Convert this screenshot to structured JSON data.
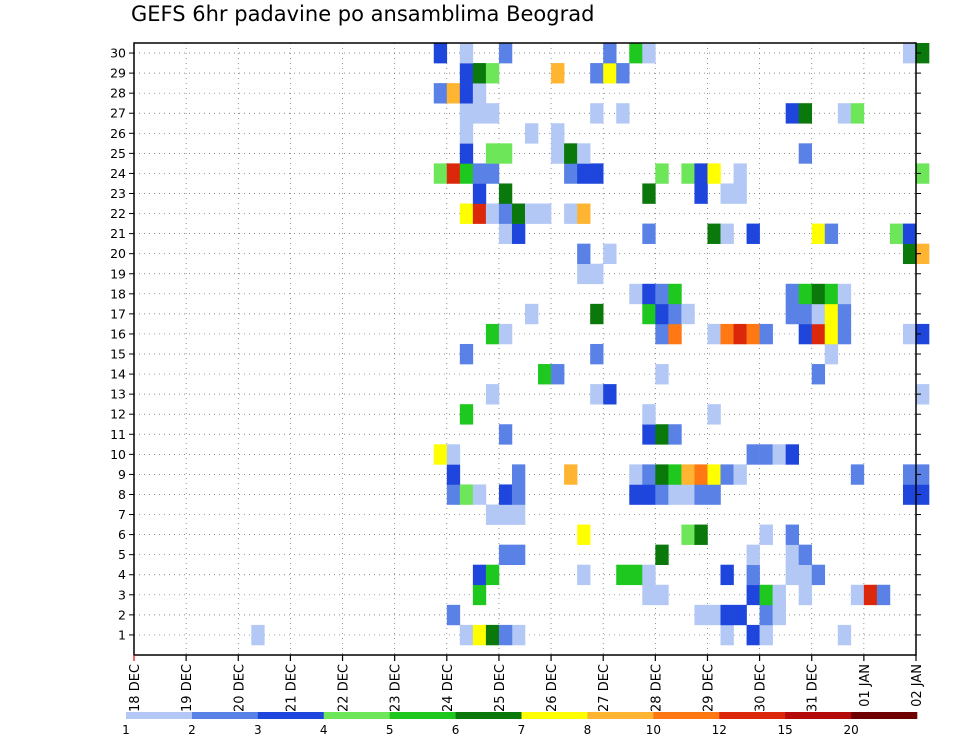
{
  "title": "GEFS 6hr padavine po ansamblima Beograd",
  "chart_data": {
    "type": "heatmap",
    "title": "GEFS 6hr padavine po ansamblima Beograd",
    "x_ticks": [
      "18 DEC",
      "19 DEC",
      "20 DEC",
      "21 DEC",
      "22 DEC",
      "23 DEC",
      "24 DEC",
      "25 DEC",
      "26 DEC",
      "27 DEC",
      "28 DEC",
      "29 DEC",
      "30 DEC",
      "31 DEC",
      "01 JAN",
      "02 JAN"
    ],
    "y_ticks": [
      "1",
      "2",
      "3",
      "4",
      "5",
      "6",
      "7",
      "8",
      "9",
      "10",
      "11",
      "12",
      "13",
      "14",
      "15",
      "16",
      "17",
      "18",
      "19",
      "20",
      "21",
      "22",
      "23",
      "24",
      "25",
      "26",
      "27",
      "28",
      "29",
      "30"
    ],
    "steps_per_day": 4,
    "grid": true,
    "legend": {
      "position": "bottom",
      "labels": [
        "1",
        "2",
        "3",
        "4",
        "5",
        "6",
        "7",
        "8",
        "10",
        "12",
        "15",
        "20"
      ],
      "colors": [
        "#b4c8f5",
        "#5a82e6",
        "#1e46dc",
        "#6ee65a",
        "#1ec81e",
        "#0a780a",
        "#ffff00",
        "#ffb432",
        "#ff7814",
        "#dc280a",
        "#b40a0a",
        "#6e0000"
      ]
    },
    "cells": [
      {
        "x": 25.25,
        "y": 1,
        "v": 1
      },
      {
        "x": 24.25,
        "y": 1,
        "v": 1
      },
      {
        "x": 24.5,
        "y": 1,
        "v": 7
      },
      {
        "x": 24.75,
        "y": 1,
        "v": 6
      },
      {
        "x": 25.0,
        "y": 1,
        "v": 2
      },
      {
        "x": 29.25,
        "y": 1,
        "v": 1
      },
      {
        "x": 29.75,
        "y": 1,
        "v": 3
      },
      {
        "x": 30.0,
        "y": 1,
        "v": 1
      },
      {
        "x": 31.5,
        "y": 1,
        "v": 1
      },
      {
        "x": 20.25,
        "y": 1,
        "v": 1
      },
      {
        "x": 24.0,
        "y": 2,
        "v": 2
      },
      {
        "x": 28.75,
        "y": 2,
        "v": 1
      },
      {
        "x": 29.0,
        "y": 2,
        "v": 1
      },
      {
        "x": 29.25,
        "y": 2,
        "v": 3
      },
      {
        "x": 29.5,
        "y": 2,
        "v": 3
      },
      {
        "x": 30.0,
        "y": 2,
        "v": 2
      },
      {
        "x": 30.25,
        "y": 2,
        "v": 1
      },
      {
        "x": 24.5,
        "y": 3,
        "v": 5
      },
      {
        "x": 27.75,
        "y": 3,
        "v": 1
      },
      {
        "x": 28.0,
        "y": 3,
        "v": 1
      },
      {
        "x": 29.75,
        "y": 3,
        "v": 3
      },
      {
        "x": 30.0,
        "y": 3,
        "v": 5
      },
      {
        "x": 30.25,
        "y": 3,
        "v": 1
      },
      {
        "x": 30.75,
        "y": 3,
        "v": 1
      },
      {
        "x": 31.75,
        "y": 3,
        "v": 1
      },
      {
        "x": 32.0,
        "y": 3,
        "v": 12
      },
      {
        "x": 32.25,
        "y": 3,
        "v": 2
      },
      {
        "x": 24.5,
        "y": 4,
        "v": 3
      },
      {
        "x": 24.75,
        "y": 4,
        "v": 5
      },
      {
        "x": 26.5,
        "y": 4,
        "v": 1
      },
      {
        "x": 27.25,
        "y": 4,
        "v": 5
      },
      {
        "x": 27.5,
        "y": 4,
        "v": 5
      },
      {
        "x": 27.75,
        "y": 4,
        "v": 1
      },
      {
        "x": 29.25,
        "y": 4,
        "v": 3
      },
      {
        "x": 29.75,
        "y": 4,
        "v": 2
      },
      {
        "x": 30.5,
        "y": 4,
        "v": 1
      },
      {
        "x": 30.75,
        "y": 4,
        "v": 1
      },
      {
        "x": 31.0,
        "y": 4,
        "v": 2
      },
      {
        "x": 25.0,
        "y": 5,
        "v": 2
      },
      {
        "x": 25.25,
        "y": 5,
        "v": 2
      },
      {
        "x": 28.0,
        "y": 5,
        "v": 6
      },
      {
        "x": 29.75,
        "y": 5,
        "v": 1
      },
      {
        "x": 30.5,
        "y": 5,
        "v": 1
      },
      {
        "x": 30.75,
        "y": 5,
        "v": 2
      },
      {
        "x": 26.5,
        "y": 6,
        "v": 7
      },
      {
        "x": 28.5,
        "y": 6,
        "v": 4
      },
      {
        "x": 28.75,
        "y": 6,
        "v": 6
      },
      {
        "x": 30.0,
        "y": 6,
        "v": 1
      },
      {
        "x": 30.5,
        "y": 6,
        "v": 2
      },
      {
        "x": 24.75,
        "y": 7,
        "v": 1
      },
      {
        "x": 25.0,
        "y": 7,
        "v": 1
      },
      {
        "x": 25.25,
        "y": 7,
        "v": 1
      },
      {
        "x": 24.0,
        "y": 8,
        "v": 2
      },
      {
        "x": 24.25,
        "y": 8,
        "v": 4
      },
      {
        "x": 24.5,
        "y": 8,
        "v": 1
      },
      {
        "x": 25.0,
        "y": 8,
        "v": 3
      },
      {
        "x": 25.25,
        "y": 8,
        "v": 2
      },
      {
        "x": 27.5,
        "y": 8,
        "v": 3
      },
      {
        "x": 27.75,
        "y": 8,
        "v": 3
      },
      {
        "x": 28.0,
        "y": 8,
        "v": 2
      },
      {
        "x": 28.25,
        "y": 8,
        "v": 1
      },
      {
        "x": 28.5,
        "y": 8,
        "v": 1
      },
      {
        "x": 28.75,
        "y": 8,
        "v": 2
      },
      {
        "x": 29.0,
        "y": 8,
        "v": 2
      },
      {
        "x": 32.75,
        "y": 8,
        "v": 3
      },
      {
        "x": 33.0,
        "y": 8,
        "v": 3
      },
      {
        "x": 24.0,
        "y": 9,
        "v": 3
      },
      {
        "x": 25.25,
        "y": 9,
        "v": 2
      },
      {
        "x": 26.25,
        "y": 9,
        "v": 8
      },
      {
        "x": 27.5,
        "y": 9,
        "v": 1
      },
      {
        "x": 27.75,
        "y": 9,
        "v": 2
      },
      {
        "x": 28.0,
        "y": 9,
        "v": 6
      },
      {
        "x": 28.25,
        "y": 9,
        "v": 5
      },
      {
        "x": 28.5,
        "y": 9,
        "v": 8
      },
      {
        "x": 28.75,
        "y": 9,
        "v": 10
      },
      {
        "x": 29.0,
        "y": 9,
        "v": 7
      },
      {
        "x": 29.25,
        "y": 9,
        "v": 2
      },
      {
        "x": 29.5,
        "y": 9,
        "v": 1
      },
      {
        "x": 31.75,
        "y": 9,
        "v": 2
      },
      {
        "x": 32.75,
        "y": 9,
        "v": 2
      },
      {
        "x": 33.0,
        "y": 9,
        "v": 2
      },
      {
        "x": 23.75,
        "y": 10,
        "v": 7
      },
      {
        "x": 24.0,
        "y": 10,
        "v": 1
      },
      {
        "x": 29.75,
        "y": 10,
        "v": 2
      },
      {
        "x": 30.0,
        "y": 10,
        "v": 2
      },
      {
        "x": 30.25,
        "y": 10,
        "v": 1
      },
      {
        "x": 30.5,
        "y": 10,
        "v": 3
      },
      {
        "x": 27.75,
        "y": 11,
        "v": 3
      },
      {
        "x": 28.0,
        "y": 11,
        "v": 6
      },
      {
        "x": 28.25,
        "y": 11,
        "v": 2
      },
      {
        "x": 25.0,
        "y": 11,
        "v": 2
      },
      {
        "x": 24.25,
        "y": 12,
        "v": 5
      },
      {
        "x": 27.75,
        "y": 12,
        "v": 1
      },
      {
        "x": 29.0,
        "y": 12,
        "v": 1
      },
      {
        "x": 24.75,
        "y": 13,
        "v": 1
      },
      {
        "x": 26.75,
        "y": 13,
        "v": 1
      },
      {
        "x": 27.0,
        "y": 13,
        "v": 3
      },
      {
        "x": 33.0,
        "y": 13,
        "v": 1
      },
      {
        "x": 25.75,
        "y": 14,
        "v": 5
      },
      {
        "x": 26.0,
        "y": 14,
        "v": 2
      },
      {
        "x": 28.0,
        "y": 14,
        "v": 1
      },
      {
        "x": 31.0,
        "y": 14,
        "v": 2
      },
      {
        "x": 24.25,
        "y": 15,
        "v": 2
      },
      {
        "x": 26.75,
        "y": 15,
        "v": 2
      },
      {
        "x": 31.25,
        "y": 15,
        "v": 1
      },
      {
        "x": 24.75,
        "y": 16,
        "v": 5
      },
      {
        "x": 25.0,
        "y": 16,
        "v": 1
      },
      {
        "x": 28.0,
        "y": 16,
        "v": 2
      },
      {
        "x": 28.25,
        "y": 16,
        "v": 10
      },
      {
        "x": 29.0,
        "y": 16,
        "v": 1
      },
      {
        "x": 29.25,
        "y": 16,
        "v": 10
      },
      {
        "x": 29.5,
        "y": 16,
        "v": 12
      },
      {
        "x": 29.75,
        "y": 16,
        "v": 10
      },
      {
        "x": 30.0,
        "y": 16,
        "v": 2
      },
      {
        "x": 30.75,
        "y": 16,
        "v": 3
      },
      {
        "x": 31.0,
        "y": 16,
        "v": 12
      },
      {
        "x": 31.25,
        "y": 16,
        "v": 7
      },
      {
        "x": 31.5,
        "y": 16,
        "v": 2
      },
      {
        "x": 32.75,
        "y": 16,
        "v": 1
      },
      {
        "x": 33.0,
        "y": 16,
        "v": 3
      },
      {
        "x": 25.5,
        "y": 17,
        "v": 1
      },
      {
        "x": 26.75,
        "y": 17,
        "v": 6
      },
      {
        "x": 27.75,
        "y": 17,
        "v": 5
      },
      {
        "x": 28.0,
        "y": 17,
        "v": 3
      },
      {
        "x": 28.25,
        "y": 17,
        "v": 2
      },
      {
        "x": 28.5,
        "y": 17,
        "v": 1
      },
      {
        "x": 30.5,
        "y": 17,
        "v": 2
      },
      {
        "x": 30.75,
        "y": 17,
        "v": 2
      },
      {
        "x": 31.0,
        "y": 17,
        "v": 1
      },
      {
        "x": 31.25,
        "y": 17,
        "v": 7
      },
      {
        "x": 31.5,
        "y": 17,
        "v": 2
      },
      {
        "x": 27.5,
        "y": 18,
        "v": 1
      },
      {
        "x": 27.75,
        "y": 18,
        "v": 3
      },
      {
        "x": 28.0,
        "y": 18,
        "v": 2
      },
      {
        "x": 28.25,
        "y": 18,
        "v": 5
      },
      {
        "x": 30.5,
        "y": 18,
        "v": 2
      },
      {
        "x": 30.75,
        "y": 18,
        "v": 5
      },
      {
        "x": 31.0,
        "y": 18,
        "v": 6
      },
      {
        "x": 31.25,
        "y": 18,
        "v": 5
      },
      {
        "x": 31.5,
        "y": 18,
        "v": 1
      },
      {
        "x": 26.5,
        "y": 19,
        "v": 1
      },
      {
        "x": 26.75,
        "y": 19,
        "v": 1
      },
      {
        "x": 26.5,
        "y": 20,
        "v": 2
      },
      {
        "x": 27.0,
        "y": 20,
        "v": 1
      },
      {
        "x": 32.75,
        "y": 20,
        "v": 6
      },
      {
        "x": 33.0,
        "y": 20,
        "v": 8
      },
      {
        "x": 25.0,
        "y": 21,
        "v": 1
      },
      {
        "x": 25.25,
        "y": 21,
        "v": 3
      },
      {
        "x": 27.75,
        "y": 21,
        "v": 2
      },
      {
        "x": 29.0,
        "y": 21,
        "v": 6
      },
      {
        "x": 29.25,
        "y": 21,
        "v": 1
      },
      {
        "x": 29.75,
        "y": 21,
        "v": 3
      },
      {
        "x": 31.0,
        "y": 21,
        "v": 7
      },
      {
        "x": 31.25,
        "y": 21,
        "v": 2
      },
      {
        "x": 32.5,
        "y": 21,
        "v": 4
      },
      {
        "x": 32.75,
        "y": 21,
        "v": 3
      },
      {
        "x": 24.25,
        "y": 22,
        "v": 7
      },
      {
        "x": 24.5,
        "y": 22,
        "v": 12
      },
      {
        "x": 24.75,
        "y": 22,
        "v": 1
      },
      {
        "x": 25.0,
        "y": 22,
        "v": 2
      },
      {
        "x": 25.25,
        "y": 22,
        "v": 6
      },
      {
        "x": 25.5,
        "y": 22,
        "v": 1
      },
      {
        "x": 25.75,
        "y": 22,
        "v": 1
      },
      {
        "x": 26.25,
        "y": 22,
        "v": 1
      },
      {
        "x": 26.5,
        "y": 22,
        "v": 8
      },
      {
        "x": 24.5,
        "y": 23,
        "v": 3
      },
      {
        "x": 25.0,
        "y": 23,
        "v": 6
      },
      {
        "x": 27.75,
        "y": 23,
        "v": 6
      },
      {
        "x": 28.75,
        "y": 23,
        "v": 3
      },
      {
        "x": 29.25,
        "y": 23,
        "v": 1
      },
      {
        "x": 29.5,
        "y": 23,
        "v": 1
      },
      {
        "x": 23.75,
        "y": 24,
        "v": 4
      },
      {
        "x": 24.0,
        "y": 24,
        "v": 12
      },
      {
        "x": 24.25,
        "y": 24,
        "v": 5
      },
      {
        "x": 24.5,
        "y": 24,
        "v": 2
      },
      {
        "x": 24.75,
        "y": 24,
        "v": 2
      },
      {
        "x": 26.25,
        "y": 24,
        "v": 2
      },
      {
        "x": 26.5,
        "y": 24,
        "v": 3
      },
      {
        "x": 26.75,
        "y": 24,
        "v": 3
      },
      {
        "x": 28.0,
        "y": 24,
        "v": 4
      },
      {
        "x": 28.5,
        "y": 24,
        "v": 4
      },
      {
        "x": 28.75,
        "y": 24,
        "v": 3
      },
      {
        "x": 29.0,
        "y": 24,
        "v": 7
      },
      {
        "x": 29.5,
        "y": 24,
        "v": 1
      },
      {
        "x": 33.0,
        "y": 24,
        "v": 4
      },
      {
        "x": 24.25,
        "y": 25,
        "v": 3
      },
      {
        "x": 24.75,
        "y": 25,
        "v": 4
      },
      {
        "x": 25.0,
        "y": 25,
        "v": 4
      },
      {
        "x": 26.0,
        "y": 25,
        "v": 1
      },
      {
        "x": 26.25,
        "y": 25,
        "v": 6
      },
      {
        "x": 26.5,
        "y": 25,
        "v": 1
      },
      {
        "x": 30.75,
        "y": 25,
        "v": 2
      },
      {
        "x": 24.25,
        "y": 26,
        "v": 1
      },
      {
        "x": 25.5,
        "y": 26,
        "v": 1
      },
      {
        "x": 26.0,
        "y": 26,
        "v": 1
      },
      {
        "x": 24.25,
        "y": 27,
        "v": 1
      },
      {
        "x": 24.5,
        "y": 27,
        "v": 1
      },
      {
        "x": 24.75,
        "y": 27,
        "v": 1
      },
      {
        "x": 26.75,
        "y": 27,
        "v": 1
      },
      {
        "x": 27.25,
        "y": 27,
        "v": 1
      },
      {
        "x": 30.5,
        "y": 27,
        "v": 3
      },
      {
        "x": 30.75,
        "y": 27,
        "v": 6
      },
      {
        "x": 31.5,
        "y": 27,
        "v": 1
      },
      {
        "x": 31.75,
        "y": 27,
        "v": 4
      },
      {
        "x": 23.75,
        "y": 28,
        "v": 2
      },
      {
        "x": 24.0,
        "y": 28,
        "v": 8
      },
      {
        "x": 24.25,
        "y": 28,
        "v": 3
      },
      {
        "x": 24.5,
        "y": 28,
        "v": 1
      },
      {
        "x": 24.25,
        "y": 29,
        "v": 3
      },
      {
        "x": 24.5,
        "y": 29,
        "v": 6
      },
      {
        "x": 24.75,
        "y": 29,
        "v": 4
      },
      {
        "x": 26.0,
        "y": 29,
        "v": 8
      },
      {
        "x": 26.75,
        "y": 29,
        "v": 2
      },
      {
        "x": 27.0,
        "y": 29,
        "v": 7
      },
      {
        "x": 27.25,
        "y": 29,
        "v": 2
      },
      {
        "x": 23.75,
        "y": 30,
        "v": 3
      },
      {
        "x": 24.25,
        "y": 30,
        "v": 1
      },
      {
        "x": 25.0,
        "y": 30,
        "v": 2
      },
      {
        "x": 27.0,
        "y": 30,
        "v": 2
      },
      {
        "x": 27.5,
        "y": 30,
        "v": 5
      },
      {
        "x": 27.75,
        "y": 30,
        "v": 1
      },
      {
        "x": 32.75,
        "y": 30,
        "v": 1
      },
      {
        "x": 33.0,
        "y": 30,
        "v": 6
      }
    ]
  }
}
